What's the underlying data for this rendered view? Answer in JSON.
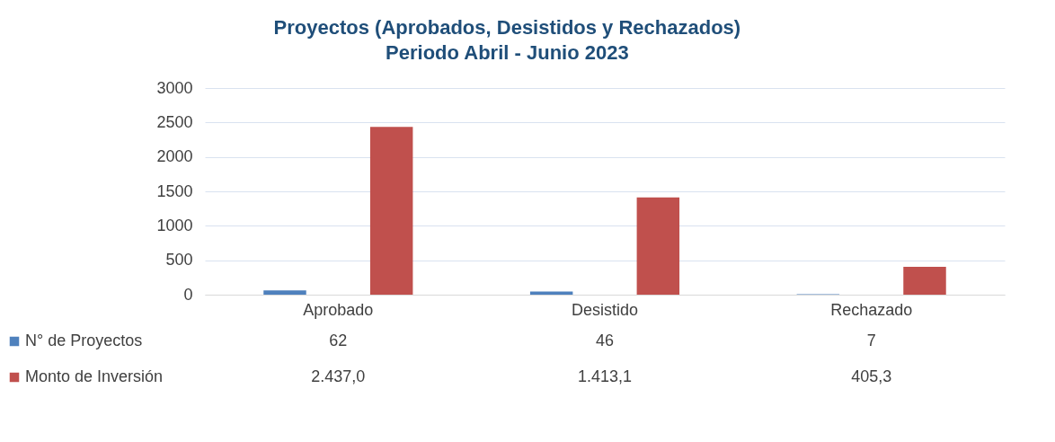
{
  "chart_data": {
    "type": "bar",
    "title": "Proyectos (Aprobados, Desistidos y Rechazados)",
    "subtitle": "Periodo Abril - Junio 2023",
    "categories": [
      "Aprobado",
      "Desistido",
      "Rechazado"
    ],
    "series": [
      {
        "name": "N° de Proyectos",
        "color": "#4f81bd",
        "values": [
          62,
          46,
          7
        ],
        "value_labels": [
          "62",
          "46",
          "7"
        ]
      },
      {
        "name": "Monto de Inversión",
        "color": "#c0504d",
        "values": [
          2437.0,
          1413.1,
          405.3
        ],
        "value_labels": [
          "2.437,0",
          "1.413,1",
          "405,3"
        ]
      }
    ],
    "ylim": [
      0,
      3000
    ],
    "yticks": [
      0,
      500,
      1000,
      1500,
      2000,
      2500,
      3000
    ],
    "grid": "y",
    "legend": "bottom"
  }
}
